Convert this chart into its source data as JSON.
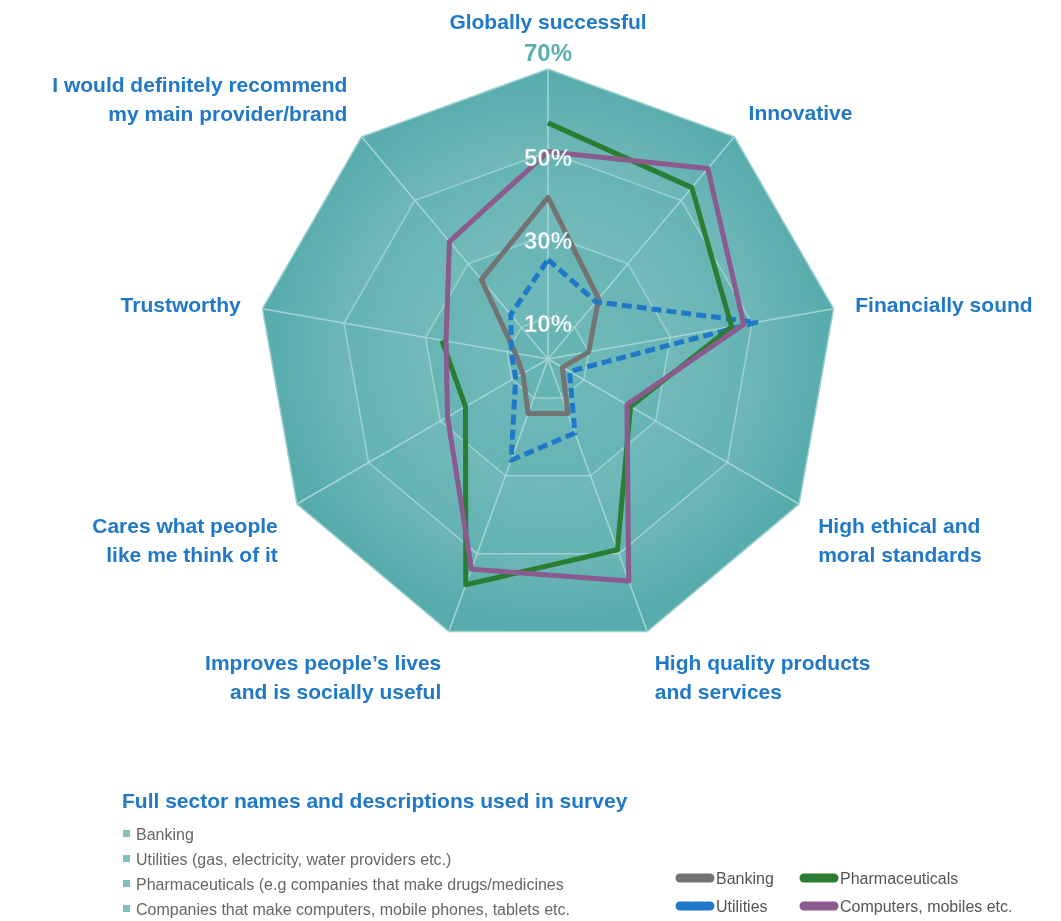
{
  "chart_data": {
    "type": "radar",
    "categories": [
      "Globally successful",
      "Innovative",
      "Financially sound",
      "High ethical and moral standards",
      "High quality products and services",
      "Improves people’s lives and is socially useful",
      "Cares what people like me think of it",
      "Trustworthy",
      "I would definitely recommend my main provider/brand"
    ],
    "series": [
      {
        "name": "Banking",
        "color": "#737373",
        "values": [
          39,
          19,
          10,
          4,
          14,
          14,
          7,
          8,
          25
        ]
      },
      {
        "name": "Utilities",
        "color": "#1f78c8",
        "line_style": "dashed",
        "values": [
          24,
          18,
          51,
          6,
          19,
          26,
          9,
          9,
          14
        ]
      },
      {
        "name": "Pharmaceuticals",
        "color": "#2a7d32",
        "values": [
          57,
          54,
          45,
          23,
          49,
          58,
          23,
          26,
          null
        ]
      },
      {
        "name": "Computers, mobiles etc.",
        "color": "#8b5a8e",
        "values": [
          50,
          60,
          48,
          22,
          57,
          54,
          28,
          25,
          37
        ]
      }
    ],
    "ylim": [
      0,
      70
    ],
    "yticks": [
      {
        "value": 10,
        "label": "10%"
      },
      {
        "value": 30,
        "label": "30%"
      },
      {
        "value": 50,
        "label": "50%"
      },
      {
        "value": 70,
        "label": "70%"
      }
    ],
    "grid": true,
    "legend": "bottom right",
    "annotations": [
      "Full sector names and descriptions used in survey",
      "Banking",
      "Utilities (gas, electricity, water providers etc.)",
      "Pharmaceuticals (e.g companies that make drugs/medicines",
      "Companies that make computers, mobile phones, tablets etc."
    ]
  }
}
